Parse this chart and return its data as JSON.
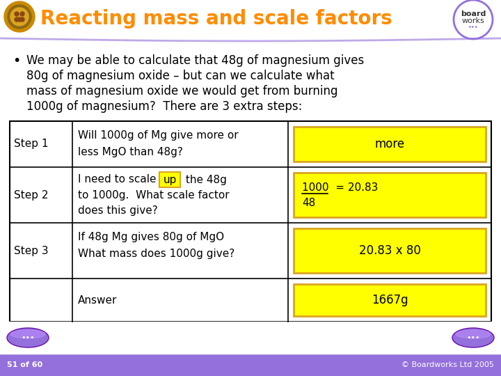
{
  "title": "Reacting mass and scale factors",
  "title_color": "#FF8C00",
  "bg_color": "#FFFFFF",
  "slide_bg": "#FFFFFF",
  "header_bar_color": "#9370DB",
  "bullet_text_lines": [
    "We may be able to calculate that 48g of magnesium gives",
    "80g of magnesium oxide – but can we calculate what",
    "mass of magnesium oxide we would get from burning",
    "1000g of magnesium?  There are 3 extra steps:"
  ],
  "table_rows": [
    {
      "step": "Step 1",
      "desc_lines": [
        "Will 1000g of Mg give more or",
        "less MgO than 48g?"
      ],
      "answer": "more",
      "answer_bg": "#FFFF00",
      "answer_border": "#DAA520",
      "special": false
    },
    {
      "step": "Step 2",
      "desc_lines": [
        "I need to scale",
        "up",
        "the 48g",
        "to 1000g.  What scale factor",
        "does this give?"
      ],
      "answer_lines": [
        "1000  = 20.83",
        "48"
      ],
      "answer_bg": "#FFFF00",
      "answer_border": "#DAA520",
      "special": true
    },
    {
      "step": "Step 3",
      "desc_lines": [
        "If 48g Mg gives 80g of MgO",
        "What mass does 1000g give?"
      ],
      "answer": "20.83 x 80",
      "answer_bg": "#FFFF00",
      "answer_border": "#DAA520",
      "special": false
    },
    {
      "step": "",
      "desc_lines": [
        "Answer"
      ],
      "answer": "1667g",
      "answer_bg": "#FFFF00",
      "answer_border": "#DAA520",
      "special": false
    }
  ],
  "footer_text": "51 of 60",
  "footer_right": "© Boardworks Ltd 2005",
  "nav_color": "#9370DB",
  "icon_color": "#CC8800",
  "logo_border": "#9370DB"
}
